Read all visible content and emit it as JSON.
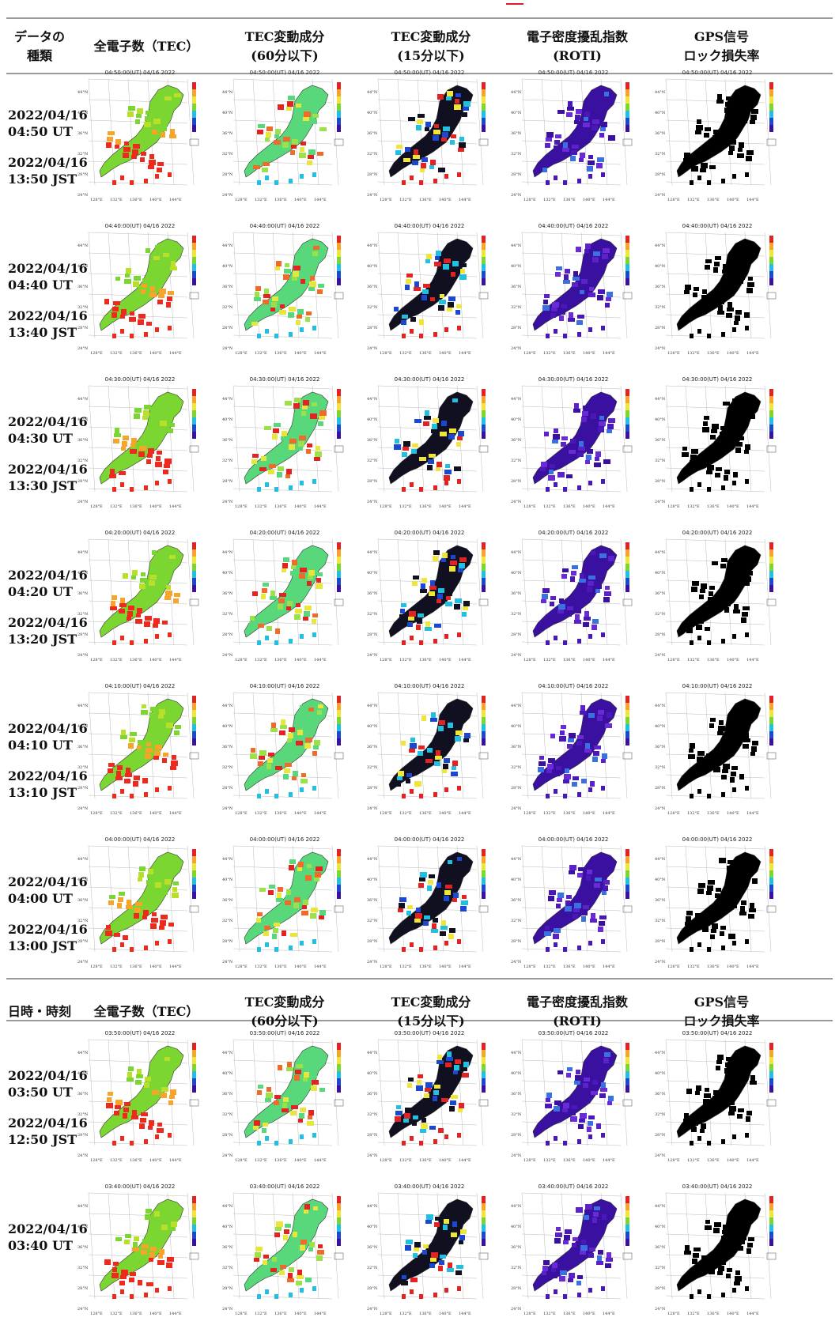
{
  "header_top": {
    "col0": [
      "データの",
      "種類"
    ],
    "col1": [
      "全電子数（TEC）"
    ],
    "col2": [
      "TEC変動成分",
      "(60分以下)"
    ],
    "col3": [
      "TEC変動成分",
      "(15分以下)"
    ],
    "col4": [
      "電子密度擾乱指数",
      "(ROTI)"
    ],
    "col5": [
      "GPS信号",
      "ロック損失率"
    ]
  },
  "header_mid": {
    "col0": [
      "日時・時刻"
    ],
    "col1": [
      "全電子数（TEC）"
    ],
    "col2": [
      "TEC変動成分",
      "(60分以下)"
    ],
    "col3": [
      "TEC変動成分",
      "(15分以下)"
    ],
    "col4": [
      "電子密度擾乱指数",
      "(ROTI)"
    ],
    "col5": [
      "GPS信号",
      "ロック損失率"
    ]
  },
  "rows": [
    {
      "date": "2022/04/16",
      "ut": "04:50 UT",
      "jst_date": "2022/04/16",
      "jst": "13:50 JST",
      "map_title": "04:50:00(UT) 04/16 2022"
    },
    {
      "date": "2022/04/16",
      "ut": "04:40 UT",
      "jst_date": "2022/04/16",
      "jst": "13:40 JST",
      "map_title": "04:40:00(UT) 04/16 2022"
    },
    {
      "date": "2022/04/16",
      "ut": "04:30 UT",
      "jst_date": "2022/04/16",
      "jst": "13:30 JST",
      "map_title": "04:30:00(UT) 04/16 2022"
    },
    {
      "date": "2022/04/16",
      "ut": "04:20 UT",
      "jst_date": "2022/04/16",
      "jst": "13:20 JST",
      "map_title": "04:20:00(UT) 04/16 2022"
    },
    {
      "date": "2022/04/16",
      "ut": "04:10 UT",
      "jst_date": "2022/04/16",
      "jst": "13:10 JST",
      "map_title": "04:10:00(UT) 04/16 2022"
    },
    {
      "date": "2022/04/16",
      "ut": "04:00 UT",
      "jst_date": "2022/04/16",
      "jst": "13:00 JST",
      "map_title": "04:00:00(UT) 04/16 2022"
    },
    {
      "date": "2022/04/16",
      "ut": "03:50 UT",
      "jst_date": "2022/04/16",
      "jst": "12:50 JST",
      "map_title": "03:50:00(UT) 04/16 2022"
    },
    {
      "date": "2022/04/16",
      "ut": "03:40 UT",
      "jst_date": "",
      "jst": "",
      "map_title": "03:40:00(UT) 04/16 2022"
    }
  ],
  "map_types": [
    {
      "name": "tec",
      "palette": [
        "#7cd631",
        "#b8e02a",
        "#f0e62a",
        "#f6a52a",
        "#ee2a1e"
      ],
      "dots": "#ee2a1e"
    },
    {
      "name": "tec60",
      "palette": [
        "#58d87a",
        "#9be24a",
        "#e8e63a",
        "#f06a2a",
        "#e32222"
      ],
      "dots": "#22c0e0"
    },
    {
      "name": "tec15",
      "palette": [
        "#101020",
        "#1c48d0",
        "#22c0e0",
        "#f0e63a",
        "#e32222"
      ],
      "dots": "#e32222"
    },
    {
      "name": "roti",
      "palette": [
        "#3a10a0",
        "#4a18b8",
        "#5a22c8",
        "#6a2ad8",
        "#3a70e0"
      ],
      "dots": "#4a18b8"
    },
    {
      "name": "lol",
      "palette": [
        "#000000",
        "#000000",
        "#000000",
        "#000000",
        "#000000"
      ],
      "dots": "#000000"
    }
  ],
  "map_axis": {
    "lat_labels": [
      "44°N",
      "40°N",
      "36°N",
      "32°N",
      "28°N",
      "24°N"
    ],
    "lon_labels": [
      "128°E",
      "132°E",
      "136°E",
      "140°E",
      "144°E"
    ]
  }
}
